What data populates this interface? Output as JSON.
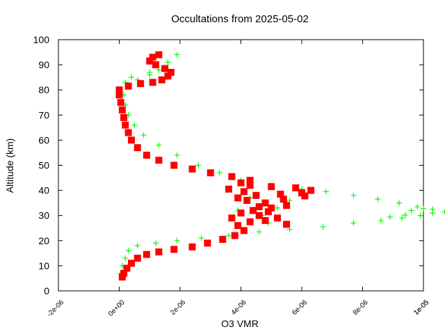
{
  "chart_data": {
    "type": "scatter",
    "title": "Occultations from 2025-05-02",
    "xlabel": "O3 VMR",
    "ylabel": "Altitude (km)",
    "xlim": [
      -2e-06,
      1e-05
    ],
    "ylim": [
      0,
      100
    ],
    "x_ticks": [
      -2e-06,
      0,
      2e-06,
      4e-06,
      6e-06,
      8e-06,
      1e-05,
      1.2e-05
    ],
    "x_tick_labels": [
      "-2e-06",
      "0e+00",
      "2e-06",
      "4e-06",
      "6e-06",
      "8e-06",
      "1e-05",
      "1e-05"
    ],
    "y_ticks": [
      0,
      10,
      20,
      30,
      40,
      50,
      60,
      70,
      80,
      90,
      100
    ],
    "y_tick_labels": [
      "0",
      "10",
      "20",
      "30",
      "40",
      "50",
      "60",
      "70",
      "80",
      "90",
      "100"
    ],
    "grid": false,
    "legend": "none",
    "series": [
      {
        "color": "#00ff00",
        "marker": "plus",
        "points": [
          [
            5e-08,
            7
          ],
          [
            1e-07,
            10
          ],
          [
            2e-07,
            13
          ],
          [
            3e-07,
            16
          ],
          [
            6e-07,
            18
          ],
          [
            1.2e-06,
            19
          ],
          [
            1.9e-06,
            20
          ],
          [
            2.7e-06,
            21
          ],
          [
            3.6e-06,
            22
          ],
          [
            4.6e-06,
            23.5
          ],
          [
            5.6e-06,
            24.5
          ],
          [
            6.7e-06,
            25.5
          ],
          [
            7.7e-06,
            27
          ],
          [
            8.6e-06,
            28
          ],
          [
            9.3e-06,
            29
          ],
          [
            9.9e-06,
            30
          ],
          [
            1.03e-05,
            31
          ],
          [
            1.07e-05,
            31.5
          ],
          [
            1.03e-05,
            32.5
          ],
          [
            9.8e-06,
            33.5
          ],
          [
            9.2e-06,
            35
          ],
          [
            8.5e-06,
            36.5
          ],
          [
            7.7e-06,
            38
          ],
          [
            6.8e-06,
            39.5
          ],
          [
            6e-06,
            40.5
          ],
          [
            5e-06,
            42
          ],
          [
            4e-06,
            44
          ],
          [
            3.3e-06,
            47
          ],
          [
            2.6e-06,
            50
          ],
          [
            1.9e-06,
            54
          ],
          [
            1.3e-06,
            58
          ],
          [
            8e-07,
            62
          ],
          [
            5e-07,
            66
          ],
          [
            3e-07,
            70
          ],
          [
            2e-07,
            74
          ],
          [
            1.5e-07,
            78
          ],
          [
            3e-07,
            82
          ],
          [
            6e-07,
            84
          ],
          [
            1e-06,
            86
          ],
          [
            1.3e-06,
            88
          ],
          [
            1.6e-06,
            91
          ],
          [
            1.9e-06,
            94
          ],
          [
            4e-07,
            85
          ],
          [
            2e-07,
            83
          ],
          [
            1e-06,
            87
          ],
          [
            4.7e-06,
            30
          ],
          [
            5.2e-06,
            33
          ],
          [
            4.3e-06,
            37
          ],
          [
            5.6e-06,
            36
          ],
          [
            4.9e-06,
            27
          ],
          [
            3.9e-06,
            32
          ],
          [
            9.6e-06,
            32
          ],
          [
            1e-05,
            32.8
          ],
          [
            9.4e-06,
            30.2
          ],
          [
            8.9e-06,
            29.4
          ]
        ]
      },
      {
        "color": "#ff0000",
        "marker": "square",
        "points": [
          [
            1e-07,
            5.5
          ],
          [
            1.5e-07,
            7
          ],
          [
            2.5e-07,
            9
          ],
          [
            4e-07,
            11
          ],
          [
            6e-07,
            13
          ],
          [
            9e-07,
            14.5
          ],
          [
            1.3e-06,
            15.5
          ],
          [
            1.8e-06,
            16.5
          ],
          [
            2.4e-06,
            17.5
          ],
          [
            2.9e-06,
            19
          ],
          [
            3.4e-06,
            20.5
          ],
          [
            3.8e-06,
            22
          ],
          [
            4.1e-06,
            24
          ],
          [
            3.9e-06,
            26
          ],
          [
            4.3e-06,
            27.5
          ],
          [
            4.8e-06,
            28
          ],
          [
            5.2e-06,
            29
          ],
          [
            4.6e-06,
            30
          ],
          [
            4e-06,
            31
          ],
          [
            4.4e-06,
            32
          ],
          [
            5e-06,
            33
          ],
          [
            5.5e-06,
            34
          ],
          [
            4.8e-06,
            35
          ],
          [
            4.2e-06,
            36
          ],
          [
            3.9e-06,
            37
          ],
          [
            4.5e-06,
            38
          ],
          [
            5.3e-06,
            38.5
          ],
          [
            6e-06,
            39
          ],
          [
            6.3e-06,
            40
          ],
          [
            5.8e-06,
            41
          ],
          [
            5e-06,
            41.5
          ],
          [
            4.3e-06,
            42
          ],
          [
            4e-06,
            43
          ],
          [
            4.3e-06,
            44
          ],
          [
            3.7e-06,
            45.5
          ],
          [
            3e-06,
            47
          ],
          [
            2.4e-06,
            48.5
          ],
          [
            1.8e-06,
            50
          ],
          [
            1.3e-06,
            52
          ],
          [
            9e-07,
            54
          ],
          [
            6e-07,
            57
          ],
          [
            4e-07,
            60
          ],
          [
            3e-07,
            63
          ],
          [
            2e-07,
            66
          ],
          [
            1.5e-07,
            69
          ],
          [
            1e-07,
            72
          ],
          [
            5e-08,
            75
          ],
          [
            0.0,
            78
          ],
          [
            0.0,
            80
          ],
          [
            3e-07,
            81.5
          ],
          [
            7e-07,
            82.5
          ],
          [
            1.1e-06,
            83
          ],
          [
            1.4e-06,
            84
          ],
          [
            1.6e-06,
            85.5
          ],
          [
            1.7e-06,
            87
          ],
          [
            1.5e-06,
            88.5
          ],
          [
            1.2e-06,
            90
          ],
          [
            1e-06,
            91.5
          ],
          [
            1.1e-06,
            93
          ],
          [
            1.3e-06,
            94
          ],
          [
            4.9e-06,
            31.5
          ],
          [
            3.7e-06,
            29
          ],
          [
            5.4e-06,
            36.5
          ],
          [
            4.6e-06,
            33.5
          ],
          [
            3.6e-06,
            40.5
          ],
          [
            5.5e-06,
            26.5
          ],
          [
            4.1e-06,
            39.5
          ],
          [
            6.1e-06,
            37.8
          ]
        ]
      }
    ]
  }
}
